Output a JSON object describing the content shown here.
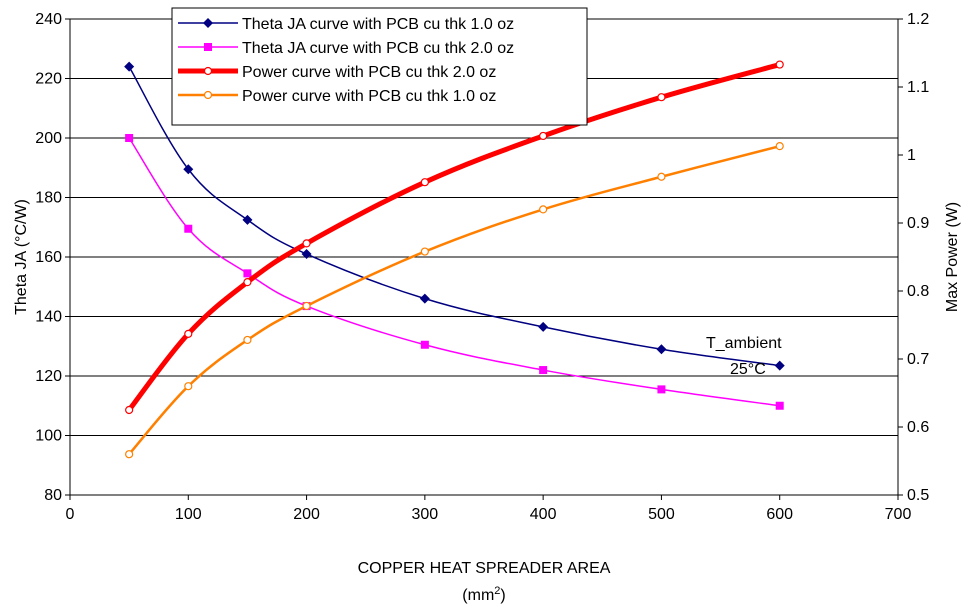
{
  "chart_data": {
    "type": "line",
    "xlabel": "COPPER HEAT SPREADER AREA",
    "xunit_prefix": "(mm",
    "xunit_sup": "2",
    "xunit_suffix": ")",
    "ylabel_left": "Theta JA (°C/W)",
    "ylabel_right": "Max Power (W)",
    "xlim": [
      0,
      700
    ],
    "ylim_left": [
      80,
      240
    ],
    "ylim_right": [
      0.5,
      1.2
    ],
    "x_ticks": [
      "0",
      "100",
      "200",
      "300",
      "400",
      "500",
      "600",
      "700"
    ],
    "y_ticks_left": [
      "80",
      "100",
      "120",
      "140",
      "160",
      "180",
      "200",
      "220",
      "240"
    ],
    "y_ticks_right": [
      "0.5",
      "0.6",
      "0.7",
      "0.8",
      "0.9",
      "1",
      "1.1",
      "1.2"
    ],
    "grid": "horizontal",
    "legend_position": "top-center",
    "series": [
      {
        "name": "Theta JA curve with PCB cu thk  1.0 oz",
        "axis": "left",
        "color": "#000080",
        "marker": "diamond",
        "width": 1.5,
        "x": [
          50,
          100,
          150,
          200,
          300,
          400,
          500,
          600
        ],
        "y": [
          224,
          189.5,
          172.5,
          161,
          146,
          136.5,
          129,
          123.5
        ]
      },
      {
        "name": "Theta JA curve with PCB cu thk  2.0 oz",
        "axis": "left",
        "color": "#ff00ff",
        "marker": "square",
        "width": 1.5,
        "x": [
          50,
          100,
          150,
          200,
          300,
          400,
          500,
          600
        ],
        "y": [
          200,
          169.5,
          154.5,
          143.5,
          130.5,
          122,
          115.5,
          110
        ]
      },
      {
        "name": "Power curve with PCB cu thk 2.0 oz",
        "axis": "right",
        "color": "#ff0000",
        "marker": "circle",
        "width": 5,
        "x": [
          50,
          100,
          150,
          200,
          300,
          400,
          500,
          600
        ],
        "y": [
          0.625,
          0.737,
          0.813,
          0.87,
          0.96,
          1.028,
          1.085,
          1.133
        ]
      },
      {
        "name": "Power curve with PCB cu thk 1.0 oz",
        "axis": "right",
        "color": "#ff8000",
        "marker": "circle",
        "width": 2.5,
        "x": [
          50,
          100,
          150,
          200,
          300,
          400,
          500,
          600
        ],
        "y": [
          0.56,
          0.66,
          0.728,
          0.778,
          0.858,
          0.92,
          0.968,
          1.013
        ]
      }
    ],
    "annotation": {
      "line1": "T_ambient",
      "line2": "25°C"
    }
  }
}
